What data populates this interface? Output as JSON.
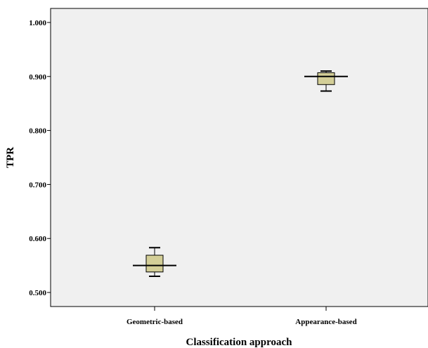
{
  "chart_data": {
    "type": "box",
    "title": "",
    "xlabel": "Classification approach",
    "ylabel": "TPR",
    "categories": [
      "Geometric-based",
      "Appearance-based"
    ],
    "y_ticks": [
      "0.500",
      "0.600",
      "0.700",
      "0.800",
      "0.900",
      "1.000"
    ],
    "ylim": [
      0.474,
      1.026
    ],
    "boxes": [
      {
        "category": "Geometric-based",
        "min": 0.53,
        "q1": 0.538,
        "median": 0.55,
        "q3": 0.569,
        "max": 0.583
      },
      {
        "category": "Appearance-based",
        "min": 0.873,
        "q1": 0.885,
        "median": 0.9,
        "q3": 0.907,
        "max": 0.91
      }
    ],
    "grid": false,
    "legend": "none",
    "colors": {
      "plot_background": "#f0f0f0",
      "box_fill": "#d3ce97",
      "box_stroke": "#000000"
    }
  }
}
